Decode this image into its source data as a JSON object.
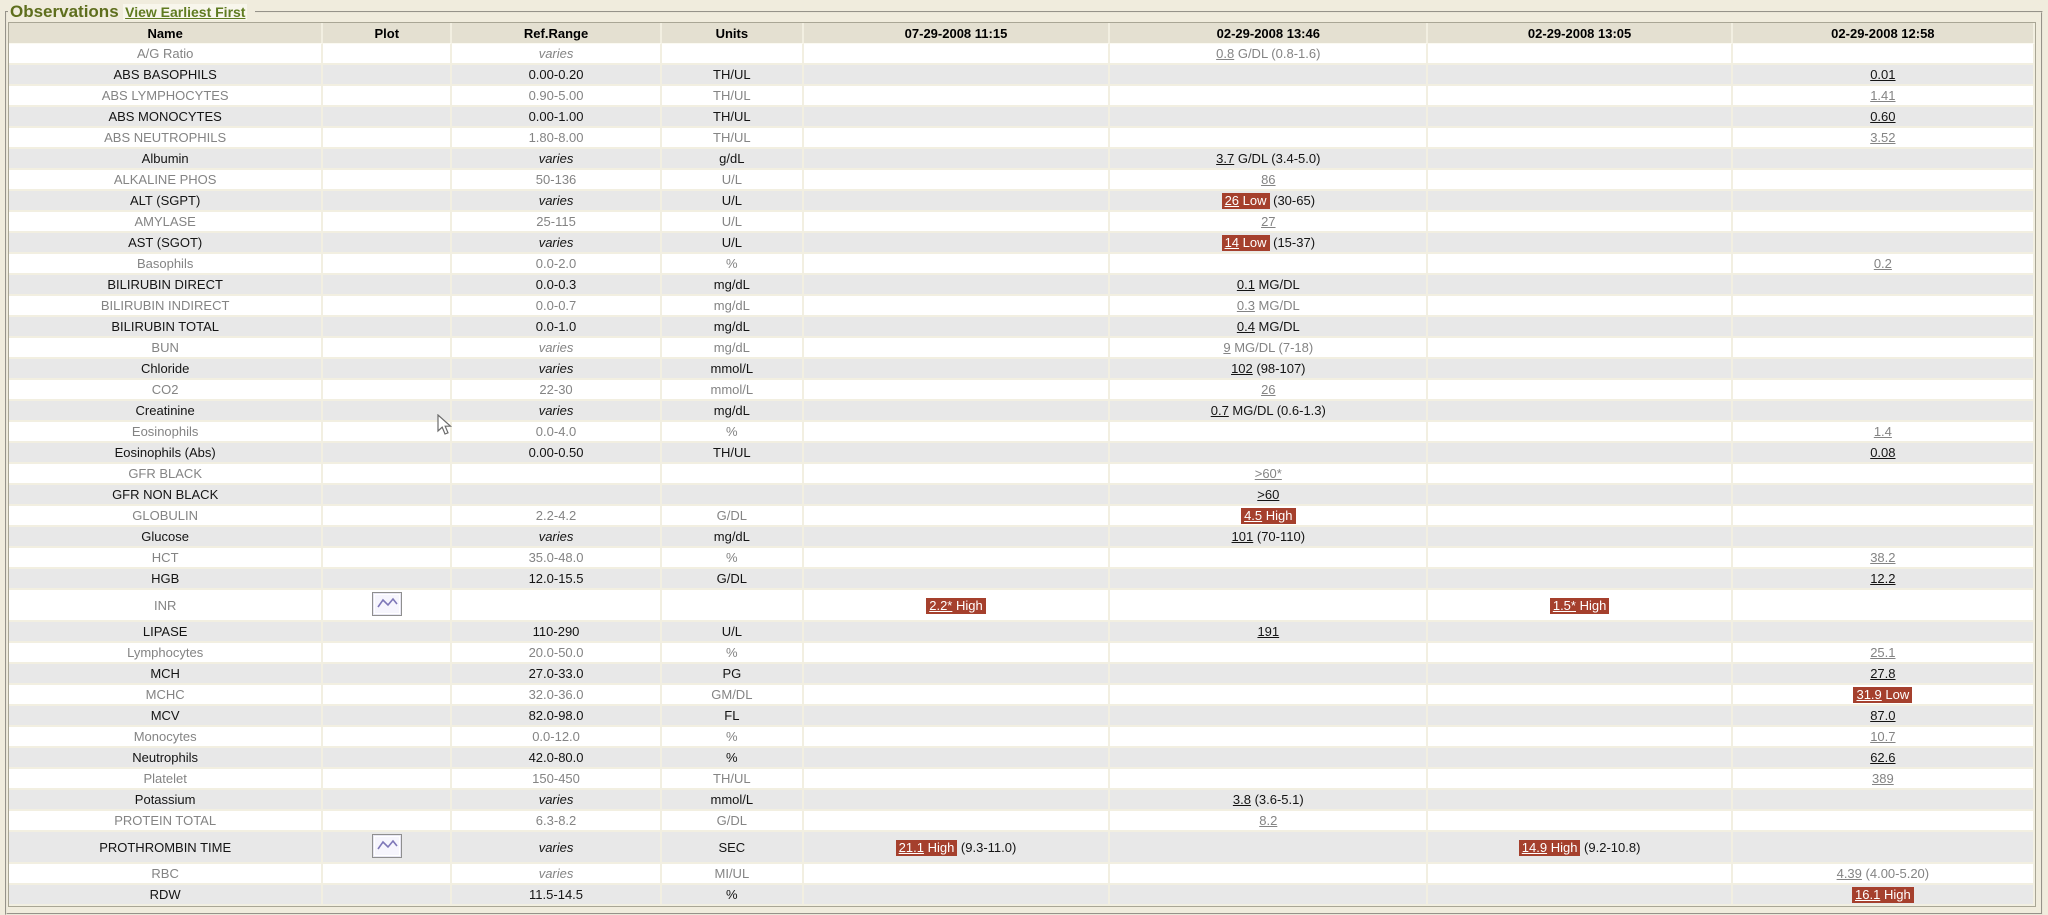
{
  "header": {
    "title": "Observations",
    "link_label": "View Earliest First"
  },
  "icons": {
    "plot_icon": "line-chart-button",
    "cursor": "mouse-arrow"
  },
  "colors": {
    "abnormal_bg": "#a5402d",
    "title_green": "#5e6e1d",
    "row_alt_bg": "#e8e8e8",
    "header_bg": "#e4e0d1",
    "page_bg": "#f0ecdd"
  },
  "table": {
    "columns": [
      "Name",
      "Plot",
      "Ref.Range",
      "Units",
      "07-29-2008 11:15",
      "02-29-2008 13:46",
      "02-29-2008 13:05",
      "02-29-2008 12:58"
    ],
    "rows": [
      {
        "name": "A/G Ratio",
        "plot": false,
        "ref": "varies",
        "units": "",
        "values": [
          null,
          {
            "v": "0.8",
            "suffix": "G/DL (0.8-1.6)"
          },
          null,
          null
        ]
      },
      {
        "name": "ABS BASOPHILS",
        "plot": false,
        "ref": "0.00-0.20",
        "units": "TH/UL",
        "values": [
          null,
          null,
          null,
          {
            "v": "0.01"
          }
        ]
      },
      {
        "name": "ABS LYMPHOCYTES",
        "plot": false,
        "ref": "0.90-5.00",
        "units": "TH/UL",
        "values": [
          null,
          null,
          null,
          {
            "v": "1.41"
          }
        ]
      },
      {
        "name": "ABS MONOCYTES",
        "plot": false,
        "ref": "0.00-1.00",
        "units": "TH/UL",
        "values": [
          null,
          null,
          null,
          {
            "v": "0.60"
          }
        ]
      },
      {
        "name": "ABS NEUTROPHILS",
        "plot": false,
        "ref": "1.80-8.00",
        "units": "TH/UL",
        "values": [
          null,
          null,
          null,
          {
            "v": "3.52"
          }
        ]
      },
      {
        "name": "Albumin",
        "plot": false,
        "ref": "varies",
        "units": "g/dL",
        "values": [
          null,
          {
            "v": "3.7",
            "suffix": "G/DL (3.4-5.0)"
          },
          null,
          null
        ]
      },
      {
        "name": "ALKALINE PHOS",
        "plot": false,
        "ref": "50-136",
        "units": "U/L",
        "values": [
          null,
          {
            "v": "86"
          },
          null,
          null
        ]
      },
      {
        "name": "ALT (SGPT)",
        "plot": false,
        "ref": "varies",
        "units": "U/L",
        "values": [
          null,
          {
            "v": "26",
            "flag": "Low",
            "suffix": "(30-65)"
          },
          null,
          null
        ]
      },
      {
        "name": "AMYLASE",
        "plot": false,
        "ref": "25-115",
        "units": "U/L",
        "values": [
          null,
          {
            "v": "27"
          },
          null,
          null
        ]
      },
      {
        "name": "AST (SGOT)",
        "plot": false,
        "ref": "varies",
        "units": "U/L",
        "values": [
          null,
          {
            "v": "14",
            "flag": "Low",
            "suffix": "(15-37)"
          },
          null,
          null
        ]
      },
      {
        "name": "Basophils",
        "plot": false,
        "ref": "0.0-2.0",
        "units": "%",
        "values": [
          null,
          null,
          null,
          {
            "v": "0.2"
          }
        ]
      },
      {
        "name": "BILIRUBIN DIRECT",
        "plot": false,
        "ref": "0.0-0.3",
        "units": "mg/dL",
        "values": [
          null,
          {
            "v": "0.1",
            "suffix": "MG/DL"
          },
          null,
          null
        ]
      },
      {
        "name": "BILIRUBIN INDIRECT",
        "plot": false,
        "ref": "0.0-0.7",
        "units": "mg/dL",
        "values": [
          null,
          {
            "v": "0.3",
            "suffix": "MG/DL"
          },
          null,
          null
        ]
      },
      {
        "name": "BILIRUBIN TOTAL",
        "plot": false,
        "ref": "0.0-1.0",
        "units": "mg/dL",
        "values": [
          null,
          {
            "v": "0.4",
            "suffix": "MG/DL"
          },
          null,
          null
        ]
      },
      {
        "name": "BUN",
        "plot": false,
        "ref": "varies",
        "units": "mg/dL",
        "values": [
          null,
          {
            "v": "9",
            "suffix": "MG/DL (7-18)"
          },
          null,
          null
        ]
      },
      {
        "name": "Chloride",
        "plot": false,
        "ref": "varies",
        "units": "mmol/L",
        "values": [
          null,
          {
            "v": "102",
            "suffix": "(98-107)"
          },
          null,
          null
        ]
      },
      {
        "name": "CO2",
        "plot": false,
        "ref": "22-30",
        "units": "mmol/L",
        "values": [
          null,
          {
            "v": "26"
          },
          null,
          null
        ]
      },
      {
        "name": "Creatinine",
        "plot": false,
        "ref": "varies",
        "units": "mg/dL",
        "values": [
          null,
          {
            "v": "0.7",
            "suffix": "MG/DL (0.6-1.3)"
          },
          null,
          null
        ]
      },
      {
        "name": "Eosinophils",
        "plot": false,
        "ref": "0.0-4.0",
        "units": "%",
        "values": [
          null,
          null,
          null,
          {
            "v": "1.4"
          }
        ]
      },
      {
        "name": "Eosinophils (Abs)",
        "plot": false,
        "ref": "0.00-0.50",
        "units": "TH/UL",
        "values": [
          null,
          null,
          null,
          {
            "v": "0.08"
          }
        ]
      },
      {
        "name": "GFR BLACK",
        "plot": false,
        "ref": "",
        "units": "",
        "values": [
          null,
          {
            "v": ">60*"
          },
          null,
          null
        ]
      },
      {
        "name": "GFR NON BLACK",
        "plot": false,
        "ref": "",
        "units": "",
        "values": [
          null,
          {
            "v": ">60"
          },
          null,
          null
        ]
      },
      {
        "name": "GLOBULIN",
        "plot": false,
        "ref": "2.2-4.2",
        "units": "G/DL",
        "values": [
          null,
          {
            "v": "4.5",
            "flag": "High"
          },
          null,
          null
        ]
      },
      {
        "name": "Glucose",
        "plot": false,
        "ref": "varies",
        "units": "mg/dL",
        "values": [
          null,
          {
            "v": "101",
            "suffix": "(70-110)"
          },
          null,
          null
        ]
      },
      {
        "name": "HCT",
        "plot": false,
        "ref": "35.0-48.0",
        "units": "%",
        "values": [
          null,
          null,
          null,
          {
            "v": "38.2"
          }
        ]
      },
      {
        "name": "HGB",
        "plot": false,
        "ref": "12.0-15.5",
        "units": "G/DL",
        "values": [
          null,
          null,
          null,
          {
            "v": "12.2"
          }
        ]
      },
      {
        "name": "INR",
        "plot": true,
        "ref": "",
        "units": "",
        "values": [
          {
            "v": "2.2*",
            "flag": "High"
          },
          null,
          {
            "v": "1.5*",
            "flag": "High"
          },
          null
        ]
      },
      {
        "name": "LIPASE",
        "plot": false,
        "ref": "110-290",
        "units": "U/L",
        "values": [
          null,
          {
            "v": "191"
          },
          null,
          null
        ]
      },
      {
        "name": "Lymphocytes",
        "plot": false,
        "ref": "20.0-50.0",
        "units": "%",
        "values": [
          null,
          null,
          null,
          {
            "v": "25.1"
          }
        ]
      },
      {
        "name": "MCH",
        "plot": false,
        "ref": "27.0-33.0",
        "units": "PG",
        "values": [
          null,
          null,
          null,
          {
            "v": "27.8"
          }
        ]
      },
      {
        "name": "MCHC",
        "plot": false,
        "ref": "32.0-36.0",
        "units": "GM/DL",
        "values": [
          null,
          null,
          null,
          {
            "v": "31.9",
            "flag": "Low"
          }
        ]
      },
      {
        "name": "MCV",
        "plot": false,
        "ref": "82.0-98.0",
        "units": "FL",
        "values": [
          null,
          null,
          null,
          {
            "v": "87.0"
          }
        ]
      },
      {
        "name": "Monocytes",
        "plot": false,
        "ref": "0.0-12.0",
        "units": "%",
        "values": [
          null,
          null,
          null,
          {
            "v": "10.7"
          }
        ]
      },
      {
        "name": "Neutrophils",
        "plot": false,
        "ref": "42.0-80.0",
        "units": "%",
        "values": [
          null,
          null,
          null,
          {
            "v": "62.6"
          }
        ]
      },
      {
        "name": "Platelet",
        "plot": false,
        "ref": "150-450",
        "units": "TH/UL",
        "values": [
          null,
          null,
          null,
          {
            "v": "389"
          }
        ]
      },
      {
        "name": "Potassium",
        "plot": false,
        "ref": "varies",
        "units": "mmol/L",
        "values": [
          null,
          {
            "v": "3.8",
            "suffix": "(3.6-5.1)"
          },
          null,
          null
        ]
      },
      {
        "name": "PROTEIN TOTAL",
        "plot": false,
        "ref": "6.3-8.2",
        "units": "G/DL",
        "values": [
          null,
          {
            "v": "8.2"
          },
          null,
          null
        ]
      },
      {
        "name": "PROTHROMBIN TIME",
        "plot": true,
        "ref": "varies",
        "units": "SEC",
        "values": [
          {
            "v": "21.1",
            "flag": "High",
            "suffix": "(9.3-11.0)"
          },
          null,
          {
            "v": "14.9",
            "flag": "High",
            "suffix": "(9.2-10.8)"
          },
          null
        ]
      },
      {
        "name": "RBC",
        "plot": false,
        "ref": "varies",
        "units": "MI/UL",
        "values": [
          null,
          null,
          null,
          {
            "v": "4.39",
            "suffix": "(4.00-5.20)"
          }
        ]
      },
      {
        "name": "RDW",
        "plot": false,
        "ref": "11.5-14.5",
        "units": "%",
        "values": [
          null,
          null,
          null,
          {
            "v": "16.1",
            "flag": "High"
          }
        ]
      }
    ]
  }
}
